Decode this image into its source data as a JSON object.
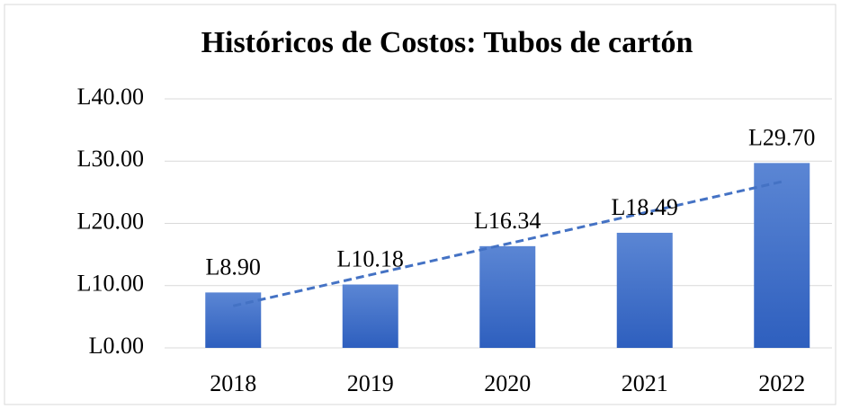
{
  "chart_data": {
    "type": "bar",
    "title": "Históricos de Costos: Tubos de cartón",
    "categories": [
      "2018",
      "2019",
      "2020",
      "2021",
      "2022"
    ],
    "values": [
      8.9,
      10.18,
      16.34,
      18.49,
      29.7
    ],
    "value_labels": [
      "L8.90",
      "L10.18",
      "L16.34",
      "L18.49",
      "L29.70"
    ],
    "color": "#4472c4",
    "ylim": [
      0,
      40
    ],
    "yticks": [
      {
        "value": 0,
        "label": "L0.00"
      },
      {
        "value": 10,
        "label": "L10.00"
      },
      {
        "value": 20,
        "label": "L20.00"
      },
      {
        "value": 30,
        "label": "L30.00"
      },
      {
        "value": 40,
        "label": "L40.00"
      }
    ],
    "grid": true,
    "trendline": "linear"
  }
}
